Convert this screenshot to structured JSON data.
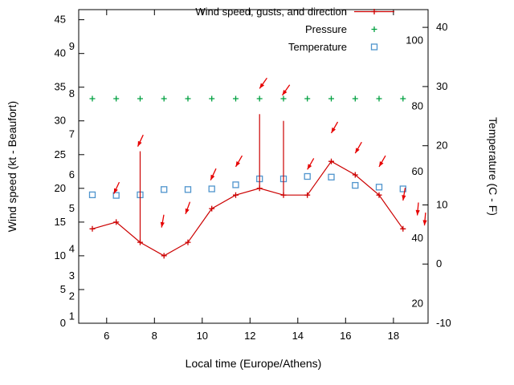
{
  "legend": {
    "position": "top-right-inside",
    "entries": [
      {
        "label": "Wind speed, gusts, and direction",
        "color": "#cc0000",
        "marker": "line-plus"
      },
      {
        "label": "Pressure",
        "color": "#00a040",
        "marker": "plus"
      },
      {
        "label": "Temperature",
        "color": "#4f94cd",
        "marker": "open-square"
      }
    ]
  },
  "axes": {
    "x": {
      "label": "Local time (Europe/Athens)",
      "ticks": [
        6,
        8,
        10,
        12,
        14,
        16,
        18
      ],
      "range": [
        4.83,
        19.45
      ]
    },
    "y_left": {
      "label": "Wind speed (kt - Beaufort)",
      "ticks": [
        0,
        5,
        10,
        15,
        20,
        25,
        30,
        35,
        40,
        45
      ],
      "range": [
        0,
        46.5
      ],
      "inner_scale": {
        "name": "Beaufort",
        "labels": [
          "1",
          "2",
          "3",
          "4",
          "5",
          "6",
          "7",
          "8",
          "9"
        ],
        "positions_kt": [
          1,
          4,
          7,
          11,
          17,
          22,
          28,
          34,
          41
        ]
      }
    },
    "y_right": {
      "label": "Temperature (C - F)",
      "ticks": [
        -10,
        0,
        10,
        20,
        30,
        40
      ],
      "range": [
        -10,
        43
      ],
      "inner_scale": {
        "name": "Fahrenheit",
        "labels": [
          "20",
          "40",
          "60",
          "80",
          "100"
        ],
        "positions_c": [
          -6.7,
          4.4,
          15.6,
          26.7,
          37.8
        ]
      }
    }
  },
  "chart_data": {
    "type": "line",
    "title": "",
    "xlabel": "Local time (Europe/Athens)",
    "ylabel_left": "Wind speed (kt - Beaufort)",
    "ylabel_right": "Temperature (C - F)",
    "grid": false,
    "legend_position": "top-right-inside",
    "x_hours": [
      5.4,
      6.4,
      7.4,
      8.4,
      9.4,
      10.4,
      11.4,
      12.4,
      13.4,
      14.4,
      15.4,
      16.4,
      17.4,
      18.4
    ],
    "series": [
      {
        "name": "Wind speed",
        "axis": "left",
        "unit": "kt",
        "color": "#cc0000",
        "marker": "plus",
        "line": true,
        "values": [
          14,
          15,
          12,
          10,
          12,
          17,
          19,
          20,
          19,
          19,
          24,
          22,
          19,
          14
        ]
      },
      {
        "name": "Wind gusts",
        "axis": "left",
        "unit": "kt",
        "color": "#cc0000",
        "style": "vertical-bar-from-speed",
        "values": [
          null,
          null,
          25.5,
          null,
          null,
          null,
          null,
          31,
          30,
          null,
          null,
          null,
          null,
          null
        ]
      },
      {
        "name": "Pressure",
        "axis": "none-visible",
        "unit": "",
        "color": "#00a040",
        "marker": "plus",
        "line": false,
        "plot_y_kt": [
          33.3,
          33.3,
          33.3,
          33.3,
          33.3,
          33.3,
          33.3,
          33.3,
          33.3,
          33.3,
          33.3,
          33.3,
          33.3,
          33.3
        ]
      },
      {
        "name": "Temperature",
        "axis": "right",
        "unit": "C",
        "color": "#4f94cd",
        "marker": "open-square",
        "line": false,
        "values": [
          11.7,
          11.6,
          11.7,
          12.6,
          12.6,
          12.7,
          13.4,
          14.4,
          14.4,
          14.8,
          14.7,
          13.3,
          13.0,
          12.7
        ]
      }
    ],
    "wind_direction_arrows": [
      {
        "x": 6.3,
        "y_kt": 19.2,
        "angle_deg": 115
      },
      {
        "x": 7.3,
        "y_kt": 26.2,
        "angle_deg": 115
      },
      {
        "x": 8.3,
        "y_kt": 14.2,
        "angle_deg": 100
      },
      {
        "x": 9.3,
        "y_kt": 16.2,
        "angle_deg": 110
      },
      {
        "x": 10.35,
        "y_kt": 21.2,
        "angle_deg": 115
      },
      {
        "x": 11.4,
        "y_kt": 23.2,
        "angle_deg": 120
      },
      {
        "x": 12.4,
        "y_kt": 34.8,
        "angle_deg": 125
      },
      {
        "x": 13.35,
        "y_kt": 33.8,
        "angle_deg": 125
      },
      {
        "x": 14.4,
        "y_kt": 22.8,
        "angle_deg": 120
      },
      {
        "x": 15.4,
        "y_kt": 28.2,
        "angle_deg": 120
      },
      {
        "x": 16.4,
        "y_kt": 25.2,
        "angle_deg": 120
      },
      {
        "x": 17.4,
        "y_kt": 23.2,
        "angle_deg": 120
      },
      {
        "x": 18.4,
        "y_kt": 18.2,
        "angle_deg": 100
      },
      {
        "x": 19.0,
        "y_kt": 16.0,
        "angle_deg": 95
      },
      {
        "x": 19.3,
        "y_kt": 14.5,
        "angle_deg": 95
      }
    ]
  }
}
